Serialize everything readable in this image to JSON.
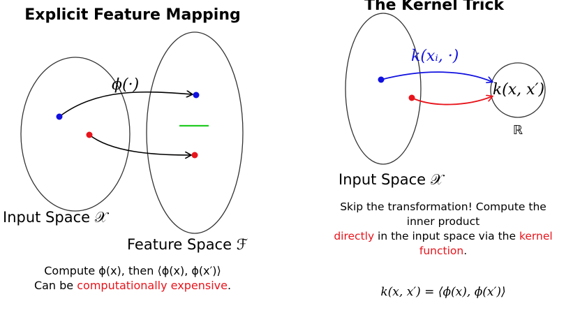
{
  "left_panel": {
    "title": "Explicit Feature Mapping",
    "map_label": "ϕ(·)",
    "input_space_label": "Input Space 𝒳",
    "feature_space_label": "Feature Space ℱ",
    "caption_line1": "Compute ϕ(x), then ⟨ϕ(x), ϕ(x′)⟩",
    "caption_line2_prefix": "Can be ",
    "caption_line2_highlight": "computationally expensive",
    "caption_line2_suffix": "."
  },
  "right_panel": {
    "title": "The Kernel Trick",
    "kernel_arrow_label": "k(xᵢ, ·)",
    "output_label": "k(x, x′)",
    "reals_label": "ℝ",
    "input_space_label": "Input Space 𝒳",
    "caption_line1": "Skip the transformation! Compute the",
    "caption_line2": "inner product",
    "caption_line3_highlight_a": "directly",
    "caption_line3_mid": " in the input space via the ",
    "caption_line3_highlight_b": "kernel",
    "caption_line4_highlight": "function",
    "caption_line4_suffix": ".",
    "formula": "k(x, x′) = ⟨ϕ(x), ϕ(x′)⟩"
  },
  "colors": {
    "blue": "#1010e0",
    "red": "#e8141b",
    "green": "#22cc22",
    "stroke": "#333333"
  }
}
